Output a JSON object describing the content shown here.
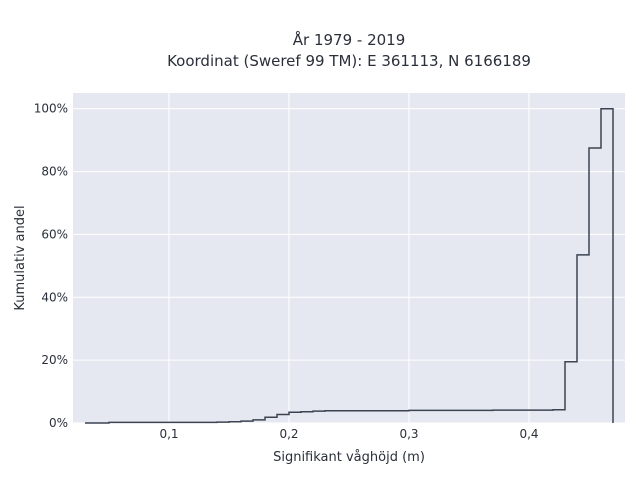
{
  "chart_data": {
    "type": "line",
    "subtype": "step-ecdf",
    "title_lines": [
      "År 1979 - 2019",
      "Koordinat (Sweref 99 TM): E 361113, N 6166189"
    ],
    "xlabel": "Signifikant våghöjd (m)",
    "ylabel": "Kumulativ andel",
    "xlim": [
      0.02,
      0.48
    ],
    "ylim": [
      0,
      1.05
    ],
    "x_ticks": [
      0.1,
      0.2,
      0.3,
      0.4
    ],
    "x_tick_labels": [
      "0,1",
      "0,2",
      "0,3",
      "0,4"
    ],
    "y_ticks": [
      0,
      0.2,
      0.4,
      0.6,
      0.8,
      1.0
    ],
    "y_tick_labels": [
      "0%",
      "20%",
      "40%",
      "60%",
      "80%",
      "100%"
    ],
    "grid": true,
    "colors": {
      "background": "#e5e8f0",
      "grid": "#ffffff",
      "line": "#3c4452"
    },
    "x": [
      0.03,
      0.05,
      0.14,
      0.15,
      0.16,
      0.17,
      0.18,
      0.19,
      0.2,
      0.21,
      0.22,
      0.23,
      0.3,
      0.37,
      0.42,
      0.43,
      0.44,
      0.45,
      0.46
    ],
    "values": [
      0.0,
      0.002,
      0.003,
      0.004,
      0.006,
      0.01,
      0.018,
      0.027,
      0.034,
      0.036,
      0.038,
      0.039,
      0.04,
      0.041,
      0.042,
      0.195,
      0.535,
      0.875,
      1.0
    ]
  }
}
